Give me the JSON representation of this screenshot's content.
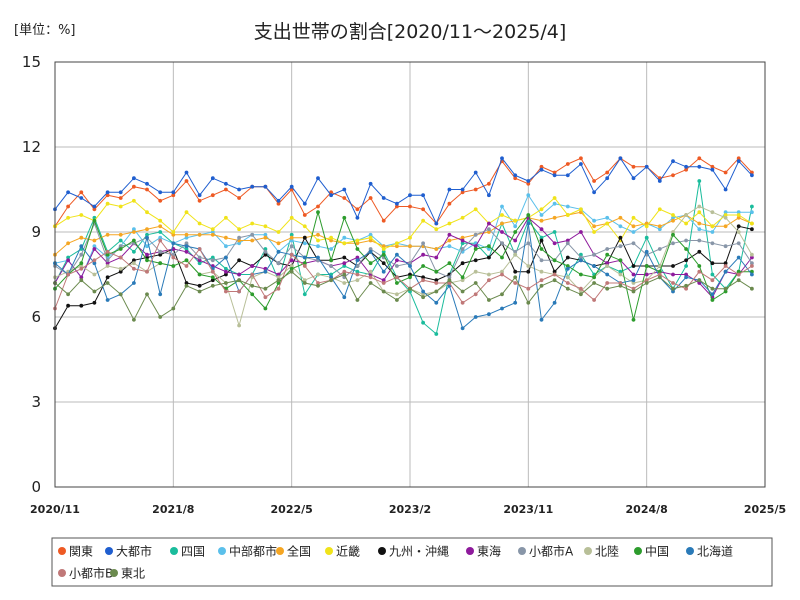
{
  "chart_data": {
    "type": "line",
    "title": "支出世帯の割合[2020/11～2025/4]",
    "unit_label": "[単位：%]",
    "ylim": [
      0,
      15
    ],
    "y_ticks": [
      "0",
      "3",
      "6",
      "9",
      "12",
      "15"
    ],
    "y_tick_values": [
      0,
      3,
      6,
      9,
      12,
      15
    ],
    "x_start": "2020-11",
    "x_end": "2025-05",
    "x_ticks": [
      "2020/11",
      "2021/8",
      "2022/5",
      "2023/2",
      "2023/11",
      "2024/8",
      "2025/5"
    ],
    "x_tick_months": [
      0,
      9,
      18,
      27,
      36,
      45,
      54
    ],
    "grid": true,
    "legend_position": "bottom",
    "series": [
      {
        "name": "関東",
        "color": "#ee5a24",
        "values": [
          9.2,
          9.9,
          10.4,
          9.8,
          10.3,
          10.2,
          10.6,
          10.5,
          10.1,
          10.3,
          10.8,
          10.1,
          10.3,
          10.5,
          10.2,
          10.6,
          10.6,
          10.0,
          10.5,
          9.6,
          9.9,
          10.4,
          10.2,
          9.8,
          10.2,
          9.4,
          9.9,
          9.9,
          9.8,
          9.3,
          10.0,
          10.4,
          10.5,
          10.7,
          11.5,
          10.9,
          10.7,
          11.3,
          11.1,
          11.4,
          11.6,
          10.8,
          11.1,
          11.6,
          11.3,
          11.3,
          10.9,
          11.0,
          11.2,
          11.6,
          11.3,
          11.1,
          11.6,
          11.1
        ]
      },
      {
        "name": "大都市",
        "color": "#1f5ecf",
        "values": [
          9.8,
          10.4,
          10.2,
          9.9,
          10.4,
          10.4,
          10.9,
          10.7,
          10.4,
          10.4,
          11.1,
          10.3,
          10.9,
          10.7,
          10.5,
          10.6,
          10.6,
          10.1,
          10.6,
          10.0,
          10.9,
          10.3,
          10.5,
          9.5,
          10.7,
          10.2,
          10.0,
          10.3,
          10.3,
          9.3,
          10.5,
          10.5,
          11.1,
          10.3,
          11.6,
          11.0,
          10.8,
          11.2,
          11.0,
          11.0,
          11.4,
          10.4,
          10.9,
          11.6,
          10.9,
          11.3,
          10.8,
          11.5,
          11.3,
          11.3,
          11.2,
          10.5,
          11.5,
          11.0
        ]
      },
      {
        "name": "四国",
        "color": "#1abc9c",
        "values": [
          7.2,
          8.1,
          8.4,
          9.5,
          8.3,
          8.7,
          8.3,
          8.9,
          9.0,
          8.6,
          8.4,
          7.9,
          8.1,
          7.7,
          7.5,
          7.5,
          8.4,
          7.3,
          8.9,
          6.8,
          7.5,
          7.5,
          7.8,
          7.6,
          7.5,
          8.3,
          7.4,
          6.9,
          5.8,
          5.4,
          7.5,
          8.6,
          8.6,
          8.1,
          9.3,
          8.2,
          9.4,
          8.8,
          9.0,
          7.4,
          8.2,
          7.5,
          7.8,
          7.6,
          7.8,
          8.8,
          7.8,
          7.0,
          7.8,
          10.8,
          7.5,
          7.0,
          7.6,
          9.9
        ]
      },
      {
        "name": "中部都市",
        "color": "#5bc0eb",
        "values": [
          7.9,
          8.0,
          7.4,
          8.5,
          8.1,
          8.5,
          9.1,
          8.5,
          8.8,
          8.6,
          8.8,
          8.9,
          9.0,
          8.5,
          8.6,
          8.9,
          8.9,
          8.3,
          8.7,
          8.6,
          8.5,
          8.4,
          8.8,
          8.7,
          8.9,
          8.5,
          8.6,
          8.5,
          8.5,
          8.4,
          8.5,
          8.3,
          8.6,
          8.4,
          9.9,
          9.2,
          10.3,
          9.6,
          10.0,
          9.9,
          9.8,
          9.4,
          9.5,
          9.2,
          9.0,
          9.3,
          9.1,
          9.5,
          9.6,
          9.1,
          9.0,
          9.7,
          9.7,
          9.7
        ]
      },
      {
        "name": "全国",
        "color": "#f5a623",
        "values": [
          8.2,
          8.6,
          8.8,
          8.7,
          8.9,
          8.9,
          9.0,
          9.1,
          9.2,
          8.9,
          8.9,
          8.9,
          8.9,
          8.8,
          8.7,
          8.7,
          8.8,
          8.6,
          8.8,
          8.8,
          8.9,
          8.7,
          8.6,
          8.6,
          8.7,
          8.5,
          8.5,
          8.5,
          8.5,
          8.4,
          8.7,
          8.8,
          8.9,
          9.0,
          9.3,
          9.4,
          9.5,
          9.4,
          9.5,
          9.6,
          9.7,
          9.2,
          9.3,
          9.5,
          9.2,
          9.3,
          9.2,
          9.4,
          9.6,
          9.3,
          9.2,
          9.2,
          9.5,
          9.3
        ]
      },
      {
        "name": "近畿",
        "color": "#f0e31a",
        "values": [
          9.2,
          9.5,
          9.6,
          9.4,
          10.0,
          9.9,
          10.1,
          9.7,
          9.4,
          9.0,
          9.7,
          9.3,
          9.1,
          9.5,
          9.1,
          9.3,
          9.2,
          9.0,
          9.5,
          9.2,
          8.7,
          8.8,
          8.6,
          8.7,
          8.8,
          8.4,
          8.6,
          8.8,
          9.4,
          9.1,
          9.3,
          9.5,
          9.8,
          9.3,
          9.6,
          9.4,
          9.5,
          9.8,
          10.2,
          9.6,
          9.8,
          9.0,
          9.3,
          8.7,
          9.5,
          9.2,
          9.8,
          9.6,
          9.3,
          9.7,
          9.2,
          9.6,
          9.6,
          9.3
        ]
      },
      {
        "name": "九州・沖縄",
        "color": "#111111",
        "values": [
          5.6,
          6.4,
          6.4,
          6.5,
          7.4,
          7.6,
          8.0,
          8.1,
          8.2,
          8.4,
          7.2,
          7.1,
          7.3,
          7.5,
          8.0,
          7.8,
          8.2,
          7.9,
          7.8,
          8.8,
          8.0,
          8.0,
          8.1,
          7.8,
          8.3,
          7.9,
          7.4,
          7.5,
          7.4,
          7.3,
          7.5,
          7.9,
          8.0,
          8.1,
          8.6,
          7.6,
          7.6,
          8.7,
          7.6,
          8.1,
          8.0,
          7.8,
          7.9,
          8.8,
          7.8,
          7.8,
          7.8,
          7.8,
          8.0,
          8.3,
          7.9,
          7.9,
          9.2,
          9.1
        ]
      },
      {
        "name": "東海",
        "color": "#8e1a9c",
        "values": [
          7.2,
          8.0,
          7.4,
          8.4,
          7.9,
          8.1,
          8.6,
          8.2,
          8.3,
          8.4,
          8.3,
          8.0,
          7.8,
          7.6,
          7.5,
          7.8,
          7.7,
          7.5,
          8.0,
          7.9,
          8.0,
          7.8,
          7.9,
          8.1,
          7.5,
          7.3,
          8.0,
          7.9,
          8.2,
          8.1,
          8.9,
          8.7,
          8.5,
          9.3,
          9.0,
          8.7,
          9.5,
          9.1,
          8.6,
          8.7,
          9.0,
          8.2,
          7.9,
          8.0,
          7.5,
          7.5,
          7.6,
          7.5,
          7.5,
          7.2,
          6.7,
          7.6,
          7.5,
          8.1
        ]
      },
      {
        "name": "小都市A",
        "color": "#8896a8",
        "values": [
          7.8,
          7.5,
          8.2,
          9.3,
          8.0,
          8.5,
          8.6,
          8.8,
          8.3,
          8.2,
          8.6,
          8.1,
          8.0,
          8.1,
          8.8,
          8.9,
          8.3,
          7.9,
          8.5,
          8.1,
          8.0,
          7.8,
          7.4,
          7.8,
          8.4,
          8.1,
          7.8,
          7.9,
          8.6,
          7.6,
          7.4,
          8.4,
          8.9,
          9.1,
          8.6,
          8.3,
          8.6,
          8.0,
          8.0,
          8.6,
          8.1,
          8.2,
          8.4,
          8.5,
          8.6,
          8.2,
          8.4,
          8.6,
          8.7,
          8.7,
          8.6,
          8.5,
          8.6,
          7.9
        ]
      },
      {
        "name": "北陸",
        "color": "#b8bf98",
        "values": [
          7.4,
          7.6,
          7.8,
          7.5,
          7.8,
          7.7,
          7.9,
          7.6,
          7.9,
          7.8,
          8.0,
          7.5,
          7.6,
          7.2,
          5.7,
          7.4,
          7.6,
          7.4,
          7.8,
          7.3,
          7.5,
          7.4,
          7.2,
          7.3,
          7.6,
          6.9,
          6.8,
          7.0,
          6.8,
          6.9,
          7.2,
          7.3,
          7.6,
          7.5,
          7.6,
          8.2,
          7.8,
          7.6,
          7.5,
          7.4,
          6.9,
          7.4,
          7.8,
          7.5,
          7.2,
          7.3,
          7.8,
          9.0,
          9.6,
          9.9,
          9.7,
          9.5,
          9.0,
          8.2
        ]
      },
      {
        "name": "中国",
        "color": "#2d9c2d",
        "values": [
          7.0,
          7.5,
          7.9,
          9.4,
          8.2,
          8.4,
          8.7,
          8.0,
          7.9,
          7.8,
          8.0,
          7.5,
          7.4,
          7.0,
          7.3,
          6.8,
          6.3,
          7.2,
          7.7,
          7.9,
          9.7,
          8.0,
          9.5,
          8.4,
          7.9,
          8.2,
          7.2,
          7.4,
          7.8,
          7.6,
          7.9,
          7.4,
          8.4,
          8.5,
          8.1,
          9.0,
          9.6,
          8.4,
          8.0,
          7.8,
          7.5,
          7.4,
          8.2,
          8.0,
          5.9,
          7.8,
          7.6,
          8.9,
          8.4,
          7.8,
          6.6,
          6.9,
          7.6,
          7.6
        ]
      },
      {
        "name": "北海道",
        "color": "#2a7ab8",
        "values": [
          7.9,
          7.5,
          8.5,
          7.9,
          6.6,
          6.8,
          7.2,
          8.8,
          6.8,
          8.6,
          8.5,
          8.4,
          7.7,
          8.1,
          6.9,
          7.5,
          7.6,
          8.3,
          8.2,
          8.1,
          8.1,
          7.4,
          6.7,
          8.0,
          8.3,
          7.6,
          8.2,
          7.8,
          6.9,
          6.5,
          7.1,
          5.6,
          6.0,
          6.1,
          6.3,
          6.5,
          9.3,
          5.9,
          6.5,
          7.7,
          8.0,
          7.8,
          7.5,
          7.2,
          7.3,
          8.3,
          7.4,
          6.9,
          7.4,
          7.3,
          6.8,
          7.6,
          8.1,
          7.5
        ]
      },
      {
        "name": "小都市B",
        "color": "#c07878",
        "values": [
          6.3,
          7.5,
          7.7,
          8.0,
          8.3,
          8.1,
          7.7,
          7.6,
          8.7,
          8.1,
          7.8,
          8.4,
          7.6,
          6.9,
          6.9,
          7.5,
          6.7,
          7.0,
          8.2,
          7.8,
          7.2,
          7.3,
          7.6,
          7.5,
          7.4,
          7.2,
          7.4,
          7.0,
          7.3,
          7.2,
          7.2,
          6.5,
          6.8,
          7.3,
          7.5,
          7.2,
          7.0,
          7.3,
          7.5,
          7.2,
          7.0,
          6.6,
          7.2,
          7.2,
          7.0,
          7.3,
          7.5,
          7.2,
          7.0,
          7.6,
          7.3,
          7.8,
          7.5,
          7.8
        ]
      },
      {
        "name": "東北",
        "color": "#6b8a4e",
        "values": [
          7.2,
          6.8,
          7.3,
          6.9,
          7.2,
          6.8,
          5.9,
          6.8,
          6.0,
          6.3,
          7.1,
          6.9,
          7.1,
          7.2,
          7.3,
          7.1,
          7.0,
          7.3,
          7.6,
          7.2,
          7.1,
          7.3,
          7.5,
          6.6,
          7.2,
          6.9,
          6.6,
          7.0,
          6.7,
          6.9,
          7.3,
          6.9,
          7.2,
          6.6,
          6.8,
          7.4,
          6.5,
          7.1,
          7.3,
          7.0,
          6.8,
          7.2,
          7.0,
          7.1,
          6.9,
          7.2,
          7.4,
          7.0,
          7.1,
          7.3,
          7.0,
          7.0,
          7.3,
          7.0
        ]
      }
    ]
  }
}
